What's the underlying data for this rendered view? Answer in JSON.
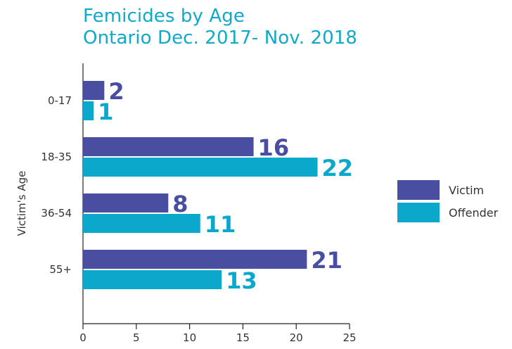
{
  "chart_data": {
    "type": "bar",
    "orientation": "horizontal",
    "title_lines": [
      "Femicides by Age",
      "Ontario Dec. 2017- Nov. 2018"
    ],
    "ylabel": "Victim's Age",
    "xlabel": "",
    "categories": [
      "0-17",
      "18-35",
      "36-54",
      "55+"
    ],
    "series": [
      {
        "name": "Victim",
        "values": [
          2,
          16,
          8,
          21
        ],
        "color": "#4a4ea1"
      },
      {
        "name": "Offender",
        "values": [
          1,
          22,
          11,
          13
        ],
        "color": "#0ba8cc"
      }
    ],
    "xlim": [
      0,
      25
    ],
    "xticks": [
      0,
      5,
      10,
      15,
      20,
      25
    ],
    "grid": false,
    "legend": "right"
  }
}
